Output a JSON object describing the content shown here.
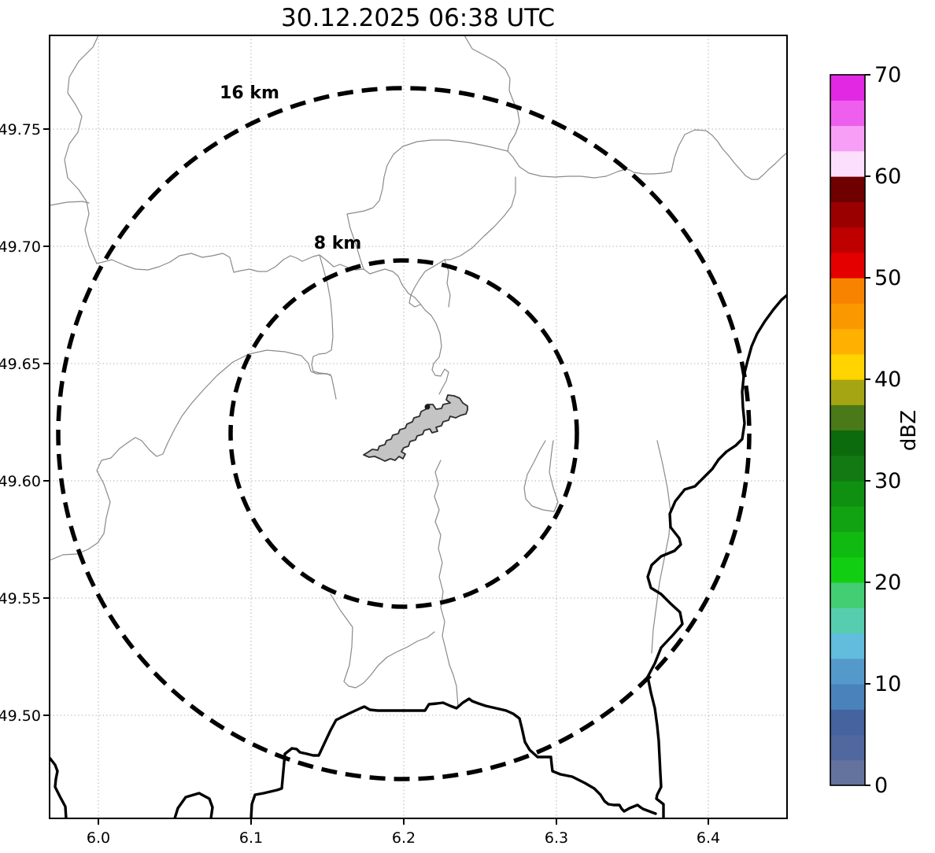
{
  "title": "30.12.2025 06:38 UTC",
  "axes": {
    "x_tick_labels": [
      "6.0",
      "6.1",
      "6.2",
      "6.3",
      "6.4"
    ],
    "y_tick_labels": [
      "49.75",
      "49.70",
      "49.65",
      "49.60",
      "49.55",
      "49.50"
    ]
  },
  "range_rings": [
    {
      "label": "16 km",
      "radius_km": 16
    },
    {
      "label": "8 km",
      "radius_km": 8
    }
  ],
  "colorbar": {
    "label": "dBZ",
    "ticks": [
      0,
      10,
      20,
      30,
      40,
      50,
      60,
      70
    ],
    "segments": [
      {
        "from": 0,
        "to": 2.5,
        "color": "#64739E"
      },
      {
        "from": 2.5,
        "to": 5,
        "color": "#50689E"
      },
      {
        "from": 5,
        "to": 7.5,
        "color": "#44639F"
      },
      {
        "from": 7.5,
        "to": 10,
        "color": "#4A82BC"
      },
      {
        "from": 10,
        "to": 12.5,
        "color": "#539ACB"
      },
      {
        "from": 12.5,
        "to": 15,
        "color": "#62BCDB"
      },
      {
        "from": 15,
        "to": 17.5,
        "color": "#57CDAF"
      },
      {
        "from": 17.5,
        "to": 20,
        "color": "#44CE73"
      },
      {
        "from": 20,
        "to": 22.5,
        "color": "#12CE12"
      },
      {
        "from": 22.5,
        "to": 25,
        "color": "#10BA10"
      },
      {
        "from": 25,
        "to": 27.5,
        "color": "#12A312"
      },
      {
        "from": 27.5,
        "to": 30,
        "color": "#0F9010"
      },
      {
        "from": 30,
        "to": 32.5,
        "color": "#137913"
      },
      {
        "from": 32.5,
        "to": 35,
        "color": "#0C6B0C"
      },
      {
        "from": 35,
        "to": 37.5,
        "color": "#4A7A18"
      },
      {
        "from": 37.5,
        "to": 40,
        "color": "#A5A513"
      },
      {
        "from": 40,
        "to": 42.5,
        "color": "#FFD400"
      },
      {
        "from": 42.5,
        "to": 45,
        "color": "#FFB000"
      },
      {
        "from": 45,
        "to": 47.5,
        "color": "#FA9800"
      },
      {
        "from": 47.5,
        "to": 50,
        "color": "#F88300"
      },
      {
        "from": 50,
        "to": 52.5,
        "color": "#E50000"
      },
      {
        "from": 52.5,
        "to": 55,
        "color": "#BE0000"
      },
      {
        "from": 55,
        "to": 57.5,
        "color": "#9A0000"
      },
      {
        "from": 57.5,
        "to": 60,
        "color": "#6E0000"
      },
      {
        "from": 60,
        "to": 62.5,
        "color": "#FCDFFC"
      },
      {
        "from": 62.5,
        "to": 65,
        "color": "#F79FF7"
      },
      {
        "from": 65,
        "to": 67.5,
        "color": "#EE5FEE"
      },
      {
        "from": 67.5,
        "to": 70,
        "color": "#E228E2"
      }
    ]
  },
  "chart_data": {
    "type": "map",
    "subtype": "radar-reflectivity-plot",
    "title": "30.12.2025 06:38 UTC",
    "extent": {
      "lon_min": 5.968,
      "lon_max": 6.451,
      "lat_min": 49.456,
      "lat_max": 49.79
    },
    "x_ticks_lon": [
      6.0,
      6.1,
      6.2,
      6.3,
      6.4
    ],
    "y_ticks_lat": [
      49.5,
      49.55,
      49.6,
      49.65,
      49.7,
      49.75
    ],
    "radar_site": {
      "lon": 6.2,
      "lat": 49.62
    },
    "range_rings_km": [
      8,
      16
    ],
    "colorbar_scale": {
      "units": "dBZ",
      "min": 0,
      "max": 70,
      "step": 2.5
    },
    "echoes": [],
    "grid": "dotted",
    "notes": "No reflectivity echoes visible; basemap shows country borders (thick), municipal boundaries (thin gray) and a gray city polygon at ring center."
  }
}
